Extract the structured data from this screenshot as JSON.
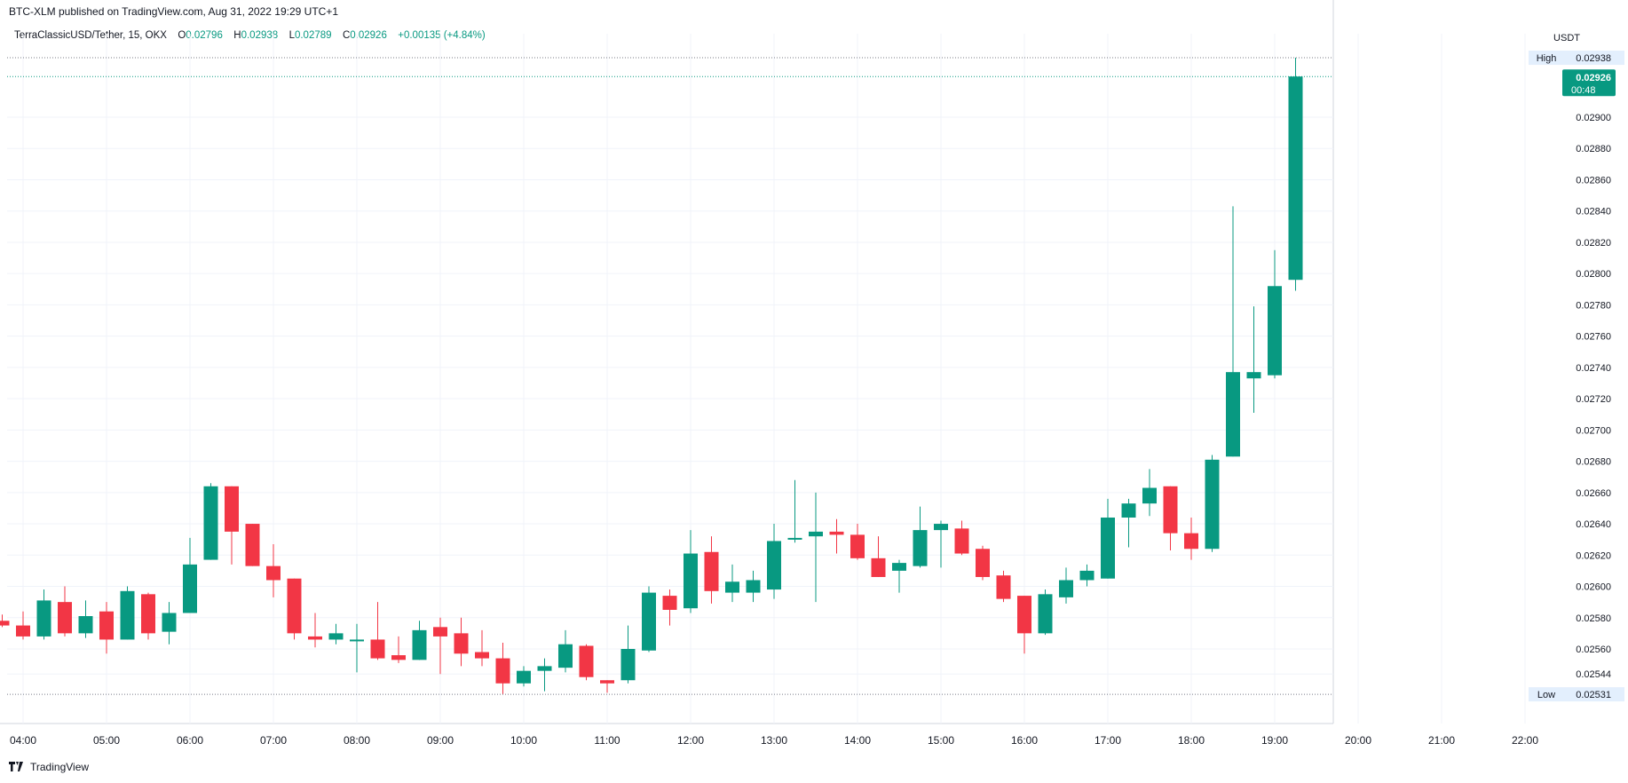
{
  "header": {
    "published": "BTC-XLM published on TradingView.com, Aug 31, 2022 19:29 UTC+1"
  },
  "legend": {
    "symbol": "TerraClassicUSD/Tether, 15, OKX",
    "o_label": "O",
    "o_value": "0.02796",
    "h_label": "H",
    "h_value": "0.02938",
    "l_label": "L",
    "l_value": "0.02789",
    "c_label": "C",
    "c_value": "0.02926",
    "change": "+0.00135 (+4.84%)"
  },
  "footer": {
    "brand": "TradingView"
  },
  "colors": {
    "up": "#089981",
    "down": "#f23645",
    "grid": "#f0f3fa",
    "text": "#131722"
  },
  "chart_data": {
    "type": "candlestick",
    "currency_label": "USDT",
    "y_ticks": [
      "0.02900",
      "0.02880",
      "0.02860",
      "0.02840",
      "0.02820",
      "0.02800",
      "0.02780",
      "0.02760",
      "0.02740",
      "0.02720",
      "0.02700",
      "0.02680",
      "0.02660",
      "0.02640",
      "0.02620",
      "0.02600",
      "0.02580",
      "0.02560",
      "0.02544"
    ],
    "x_ticks": [
      "04:00",
      "05:00",
      "06:00",
      "07:00",
      "08:00",
      "09:00",
      "10:00",
      "11:00",
      "12:00",
      "13:00",
      "14:00",
      "15:00",
      "16:00",
      "17:00",
      "18:00",
      "19:00",
      "20:00",
      "21:00",
      "22:00"
    ],
    "ylim": [
      0.0252,
      0.0295
    ],
    "high_marker": {
      "label": "High",
      "value": "0.02938"
    },
    "low_marker": {
      "label": "Low",
      "value": "0.02531"
    },
    "last_price": {
      "value": "0.02926",
      "countdown": "00:48"
    },
    "time_start": "03:45",
    "interval_minutes": 15,
    "candles": [
      {
        "o": 0.02578,
        "h": 0.02582,
        "l": 0.02574,
        "c": 0.02575
      },
      {
        "o": 0.02575,
        "h": 0.02584,
        "l": 0.02566,
        "c": 0.02568
      },
      {
        "o": 0.02568,
        "h": 0.02598,
        "l": 0.02566,
        "c": 0.02591
      },
      {
        "o": 0.0259,
        "h": 0.026,
        "l": 0.02568,
        "c": 0.0257
      },
      {
        "o": 0.0257,
        "h": 0.02591,
        "l": 0.02567,
        "c": 0.02581
      },
      {
        "o": 0.02584,
        "h": 0.0259,
        "l": 0.02557,
        "c": 0.02566
      },
      {
        "o": 0.02566,
        "h": 0.026,
        "l": 0.02566,
        "c": 0.02597
      },
      {
        "o": 0.02595,
        "h": 0.02596,
        "l": 0.02566,
        "c": 0.0257
      },
      {
        "o": 0.02571,
        "h": 0.0259,
        "l": 0.02563,
        "c": 0.02583
      },
      {
        "o": 0.02583,
        "h": 0.02631,
        "l": 0.02583,
        "c": 0.02614
      },
      {
        "o": 0.02617,
        "h": 0.02666,
        "l": 0.02617,
        "c": 0.02664
      },
      {
        "o": 0.02664,
        "h": 0.02664,
        "l": 0.02614,
        "c": 0.02635
      },
      {
        "o": 0.0264,
        "h": 0.0264,
        "l": 0.02613,
        "c": 0.02613
      },
      {
        "o": 0.02613,
        "h": 0.02627,
        "l": 0.02593,
        "c": 0.02604
      },
      {
        "o": 0.02605,
        "h": 0.02605,
        "l": 0.02566,
        "c": 0.0257
      },
      {
        "o": 0.02568,
        "h": 0.02583,
        "l": 0.02561,
        "c": 0.02566
      },
      {
        "o": 0.02566,
        "h": 0.02576,
        "l": 0.02563,
        "c": 0.0257
      },
      {
        "o": 0.02566,
        "h": 0.02576,
        "l": 0.02545,
        "c": 0.02566
      },
      {
        "o": 0.02566,
        "h": 0.0259,
        "l": 0.02553,
        "c": 0.02554
      },
      {
        "o": 0.02556,
        "h": 0.02568,
        "l": 0.02551,
        "c": 0.02553
      },
      {
        "o": 0.02553,
        "h": 0.02578,
        "l": 0.02553,
        "c": 0.02572
      },
      {
        "o": 0.02574,
        "h": 0.0258,
        "l": 0.02544,
        "c": 0.02568
      },
      {
        "o": 0.0257,
        "h": 0.0258,
        "l": 0.02549,
        "c": 0.02557
      },
      {
        "o": 0.02558,
        "h": 0.02572,
        "l": 0.02549,
        "c": 0.02554
      },
      {
        "o": 0.02554,
        "h": 0.02564,
        "l": 0.02531,
        "c": 0.02538
      },
      {
        "o": 0.02538,
        "h": 0.02549,
        "l": 0.02536,
        "c": 0.02546
      },
      {
        "o": 0.02546,
        "h": 0.02554,
        "l": 0.02533,
        "c": 0.02549
      },
      {
        "o": 0.02548,
        "h": 0.02572,
        "l": 0.02545,
        "c": 0.02563
      },
      {
        "o": 0.02562,
        "h": 0.02563,
        "l": 0.0254,
        "c": 0.02542
      },
      {
        "o": 0.0254,
        "h": 0.0254,
        "l": 0.02532,
        "c": 0.02538
      },
      {
        "o": 0.0254,
        "h": 0.02575,
        "l": 0.02538,
        "c": 0.0256
      },
      {
        "o": 0.02559,
        "h": 0.026,
        "l": 0.02558,
        "c": 0.02596
      },
      {
        "o": 0.02594,
        "h": 0.02598,
        "l": 0.02575,
        "c": 0.02585
      },
      {
        "o": 0.02586,
        "h": 0.02636,
        "l": 0.02583,
        "c": 0.02621
      },
      {
        "o": 0.02622,
        "h": 0.02632,
        "l": 0.02589,
        "c": 0.02597
      },
      {
        "o": 0.02596,
        "h": 0.02614,
        "l": 0.0259,
        "c": 0.02603
      },
      {
        "o": 0.02596,
        "h": 0.0261,
        "l": 0.0259,
        "c": 0.02604
      },
      {
        "o": 0.02598,
        "h": 0.0264,
        "l": 0.02592,
        "c": 0.02629
      },
      {
        "o": 0.0263,
        "h": 0.02668,
        "l": 0.02628,
        "c": 0.02631
      },
      {
        "o": 0.02632,
        "h": 0.0266,
        "l": 0.0259,
        "c": 0.02635
      },
      {
        "o": 0.02635,
        "h": 0.02643,
        "l": 0.02621,
        "c": 0.02633
      },
      {
        "o": 0.02633,
        "h": 0.0264,
        "l": 0.02617,
        "c": 0.02618
      },
      {
        "o": 0.02618,
        "h": 0.02632,
        "l": 0.02606,
        "c": 0.02606
      },
      {
        "o": 0.0261,
        "h": 0.02617,
        "l": 0.02596,
        "c": 0.02615
      },
      {
        "o": 0.02613,
        "h": 0.02651,
        "l": 0.02612,
        "c": 0.02636
      },
      {
        "o": 0.02636,
        "h": 0.02642,
        "l": 0.02612,
        "c": 0.0264
      },
      {
        "o": 0.02637,
        "h": 0.02642,
        "l": 0.0262,
        "c": 0.02621
      },
      {
        "o": 0.02624,
        "h": 0.02626,
        "l": 0.02604,
        "c": 0.02606
      },
      {
        "o": 0.02607,
        "h": 0.0261,
        "l": 0.0259,
        "c": 0.02592
      },
      {
        "o": 0.02594,
        "h": 0.02594,
        "l": 0.02557,
        "c": 0.0257
      },
      {
        "o": 0.0257,
        "h": 0.02598,
        "l": 0.02569,
        "c": 0.02595
      },
      {
        "o": 0.02593,
        "h": 0.02612,
        "l": 0.02589,
        "c": 0.02604
      },
      {
        "o": 0.02604,
        "h": 0.02614,
        "l": 0.026,
        "c": 0.0261
      },
      {
        "o": 0.02605,
        "h": 0.02656,
        "l": 0.02605,
        "c": 0.02644
      },
      {
        "o": 0.02644,
        "h": 0.02656,
        "l": 0.02625,
        "c": 0.02653
      },
      {
        "o": 0.02653,
        "h": 0.02675,
        "l": 0.02645,
        "c": 0.02663
      },
      {
        "o": 0.02664,
        "h": 0.02664,
        "l": 0.02623,
        "c": 0.02634
      },
      {
        "o": 0.02634,
        "h": 0.02644,
        "l": 0.02617,
        "c": 0.02624
      },
      {
        "o": 0.02624,
        "h": 0.02684,
        "l": 0.02622,
        "c": 0.02681
      },
      {
        "o": 0.02683,
        "h": 0.02843,
        "l": 0.02683,
        "c": 0.02737
      },
      {
        "o": 0.02733,
        "h": 0.02779,
        "l": 0.02711,
        "c": 0.02737
      },
      {
        "o": 0.02735,
        "h": 0.02815,
        "l": 0.02733,
        "c": 0.02792
      },
      {
        "o": 0.02796,
        "h": 0.02938,
        "l": 0.02789,
        "c": 0.02926
      }
    ]
  }
}
